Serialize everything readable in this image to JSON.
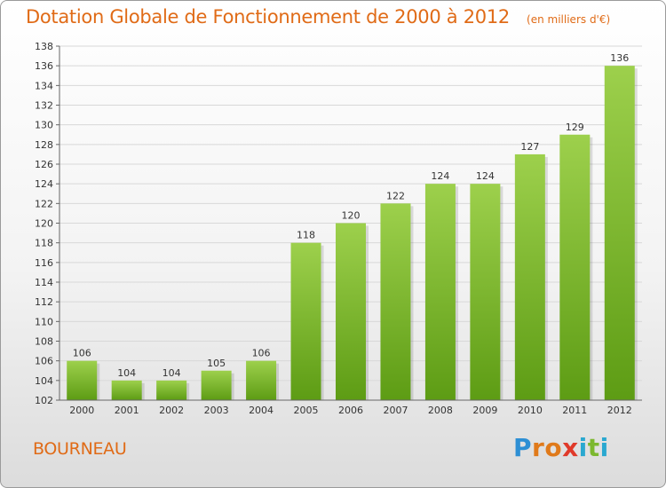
{
  "header": {
    "title": "Dotation Globale de Fonctionnement de 2000 à 2012",
    "unit": "(en milliers d'€)"
  },
  "footer": {
    "commune": "BOURNEAU",
    "logo_letters": [
      "P",
      "r",
      "o",
      "x",
      "i",
      "t",
      "i"
    ],
    "logo_colors": [
      "#2d8fd4",
      "#e07a1a",
      "#e07a1a",
      "#e03a2a",
      "#2aa8d0",
      "#7cb82f",
      "#2aa8d0"
    ]
  },
  "chart_data": {
    "type": "bar",
    "title": "Dotation Globale de Fonctionnement de 2000 à 2012",
    "subtitle": "(en milliers d'€)",
    "categories": [
      "2000",
      "2001",
      "2002",
      "2003",
      "2004",
      "2005",
      "2006",
      "2007",
      "2008",
      "2009",
      "2010",
      "2011",
      "2012"
    ],
    "values": [
      106,
      104,
      104,
      105,
      106,
      118,
      120,
      122,
      124,
      124,
      127,
      129,
      136
    ],
    "ylim": [
      102,
      138
    ],
    "yticks": [
      102,
      104,
      106,
      108,
      110,
      112,
      114,
      116,
      118,
      120,
      122,
      124,
      126,
      128,
      130,
      132,
      134,
      136,
      138
    ],
    "grid": true,
    "bar_color_top": "#9dd04c",
    "bar_color_bottom": "#5d9c14",
    "grid_color": "#d8d8d8",
    "title_color": "#e06b17"
  }
}
